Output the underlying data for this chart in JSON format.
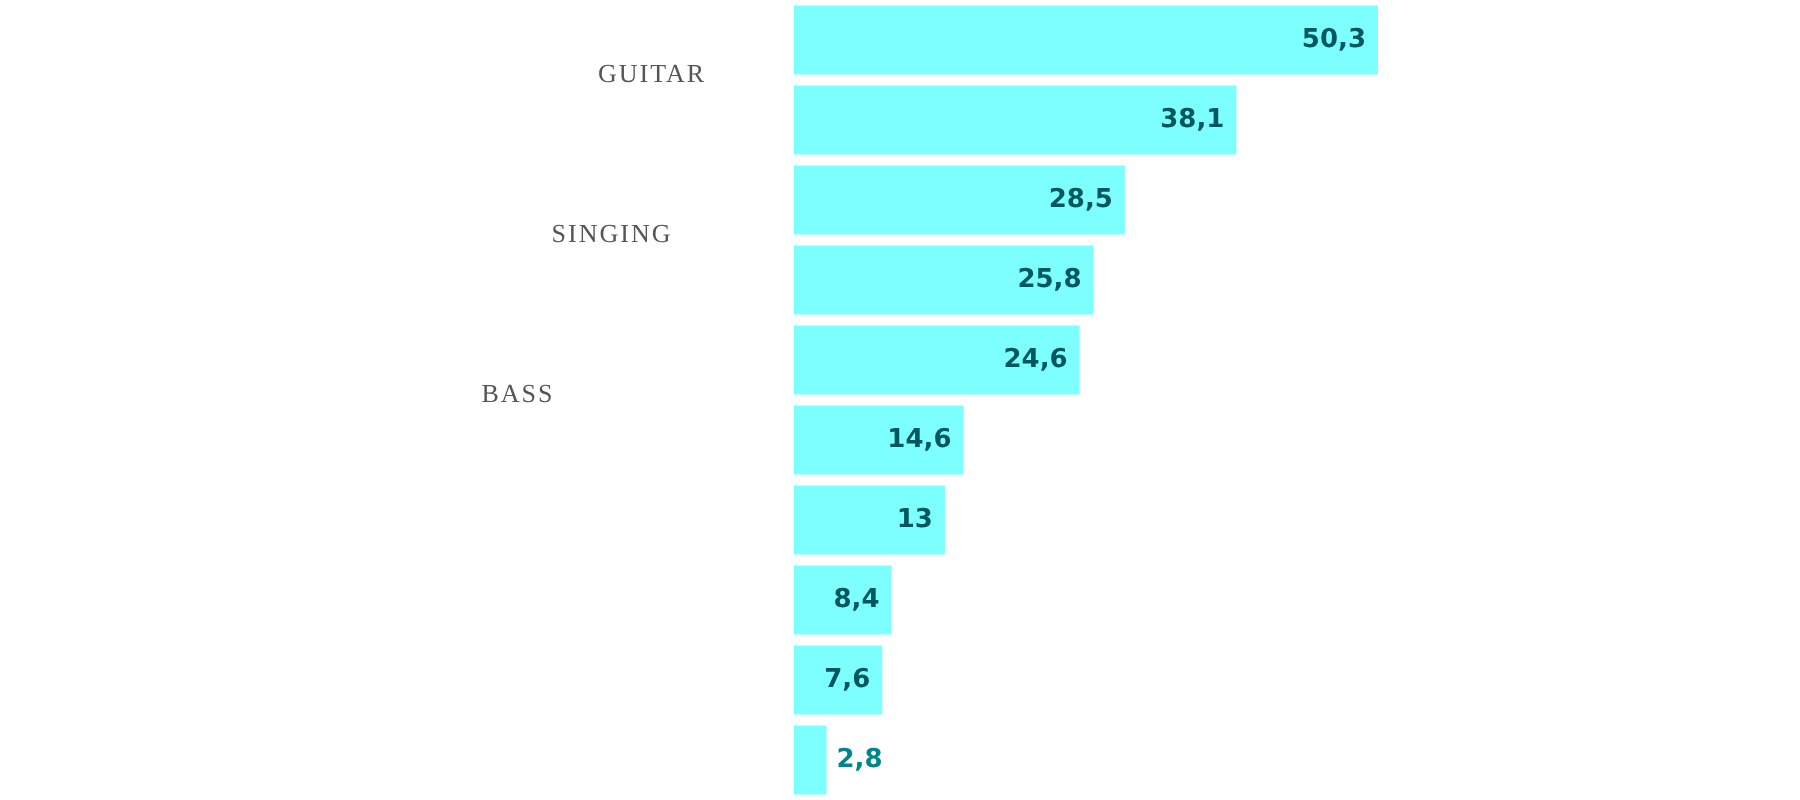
{
  "chart_data": {
    "type": "bar",
    "orientation": "horizontal",
    "categories": [
      null,
      null,
      null,
      null,
      null,
      null,
      null,
      null,
      null,
      null
    ],
    "values": [
      50.3,
      38.1,
      28.5,
      25.8,
      24.6,
      14.6,
      13,
      8.4,
      7.6,
      2.8
    ],
    "value_labels": [
      "50,3",
      "38,1",
      "28,5",
      "25,8",
      "24,6",
      "14,6",
      "13",
      "8,4",
      "7,6",
      "2,8"
    ],
    "color": "#7effff",
    "annotations": [
      "GUITAR",
      "SINGING",
      "BASS"
    ],
    "grid": false,
    "legend": false,
    "tick_labels": false
  }
}
